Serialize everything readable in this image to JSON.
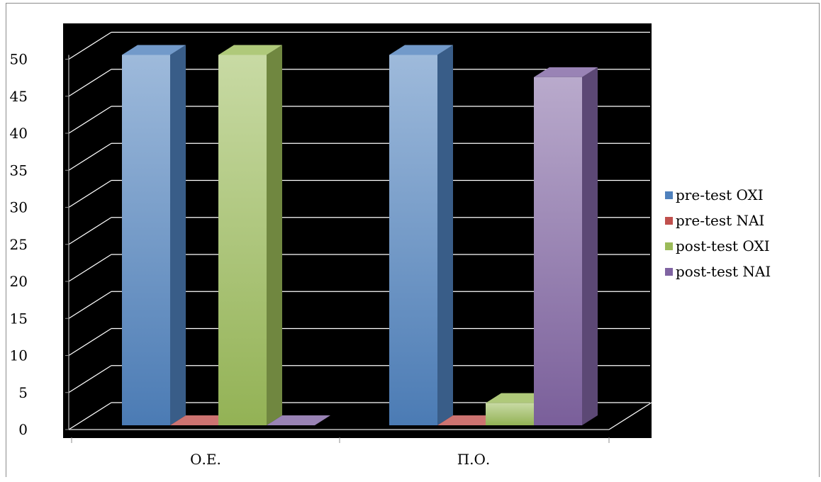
{
  "chart_data": {
    "type": "bar",
    "style": "3d-clustered-column",
    "categories": [
      "Ο.Ε.",
      "Π.Ο."
    ],
    "series": [
      {
        "name": "pre-test OXI",
        "values": [
          50,
          50
        ],
        "color": "#4f81bd"
      },
      {
        "name": "pre-test NAI",
        "values": [
          0,
          0
        ],
        "color": "#c0504d"
      },
      {
        "name": "post-test OXI",
        "values": [
          50,
          3
        ],
        "color": "#9bbb59"
      },
      {
        "name": "post-test NAI",
        "values": [
          0,
          47
        ],
        "color": "#8064a2"
      }
    ],
    "y_ticks": [
      "0",
      "5",
      "10",
      "15",
      "20",
      "25",
      "30",
      "35",
      "40",
      "45",
      "50"
    ],
    "ylim": [
      0,
      50
    ],
    "title": "",
    "xlabel": "",
    "ylabel": "",
    "grid": true,
    "legend_position": "right",
    "plot_background": "#000000",
    "gridline_color": "#ffffff"
  }
}
